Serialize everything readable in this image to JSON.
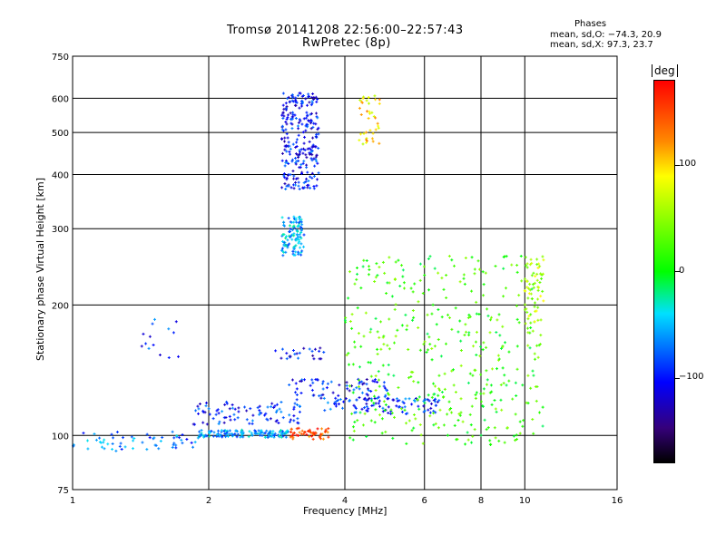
{
  "header": {
    "title_line1": "Tromsø 20141208 22:56:00–22:57:43",
    "title_line2": "RwPretec (8p)",
    "phases_label": "Phases",
    "phases_o": "mean, sd,O: −74.3, 20.9",
    "phases_x": "mean, sd,X:  97.3, 23.7"
  },
  "colorbar": {
    "unit": "deg",
    "ticks": [
      "100",
      "0",
      "−100"
    ],
    "tick_values": [
      100,
      0,
      -100
    ],
    "range": [
      -180,
      180
    ],
    "colors": [
      "#ff0000",
      "#ff8a00",
      "#ffff00",
      "#00ff00",
      "#00e0ff",
      "#0000ff",
      "#35007a",
      "#000000"
    ]
  },
  "chart_data": {
    "type": "scatter",
    "title": "Tromsø 20141208 22:56:00–22:57:43",
    "subtitle": "RwPretec (8p)",
    "xlabel": "Frequency [MHz]",
    "ylabel": "Stationary phase Virtual Height [km]",
    "xscale": "log",
    "yscale": "log",
    "xlim": [
      1,
      16
    ],
    "ylim": [
      75,
      750
    ],
    "x_ticks": [
      1,
      2,
      4,
      6,
      8,
      10,
      16
    ],
    "x_tick_labels": [
      "1",
      "2",
      "4",
      "6",
      "8",
      "10",
      "16"
    ],
    "y_ticks": [
      75,
      100,
      200,
      300,
      400,
      500,
      600,
      750
    ],
    "y_tick_labels": [
      "75",
      "100",
      "200",
      "300",
      "400",
      "500",
      "600",
      "750"
    ],
    "grid": true,
    "color_by": "phase [deg]",
    "clusters": [
      {
        "x": [
          1.0,
          1.9
        ],
        "y": [
          92,
          102
        ],
        "phase": -70,
        "n": 60
      },
      {
        "x": [
          1.9,
          3.0
        ],
        "y": [
          99,
          103
        ],
        "phase": -60,
        "n": 140
      },
      {
        "x": [
          1.85,
          3.3
        ],
        "y": [
          106,
          120
        ],
        "phase": -95,
        "n": 90
      },
      {
        "x": [
          3.0,
          3.7
        ],
        "y": [
          98,
          104
        ],
        "phase": 150,
        "n": 50
      },
      {
        "x": [
          2.9,
          3.5
        ],
        "y": [
          370,
          620
        ],
        "phase": -100,
        "n": 260
      },
      {
        "x": [
          2.9,
          3.25
        ],
        "y": [
          260,
          320
        ],
        "phase": -55,
        "n": 110
      },
      {
        "x": [
          4.3,
          4.8
        ],
        "y": [
          470,
          610
        ],
        "phase": 95,
        "n": 40
      },
      {
        "x": [
          3.0,
          5.0
        ],
        "y": [
          120,
          135
        ],
        "phase": -100,
        "n": 80
      },
      {
        "x": [
          3.6,
          6.5
        ],
        "y": [
          112,
          122
        ],
        "phase": -90,
        "n": 90
      },
      {
        "x": [
          4.0,
          11.0
        ],
        "y": [
          95,
          260
        ],
        "phase": 20,
        "n": 420
      },
      {
        "x": [
          2.8,
          3.6
        ],
        "y": [
          150,
          160
        ],
        "phase": -105,
        "n": 25
      },
      {
        "x": [
          1.4,
          1.75
        ],
        "y": [
          150,
          200
        ],
        "phase": -95,
        "n": 14
      },
      {
        "x": [
          10.0,
          11.0
        ],
        "y": [
          180,
          260
        ],
        "phase": 60,
        "n": 60
      }
    ]
  }
}
